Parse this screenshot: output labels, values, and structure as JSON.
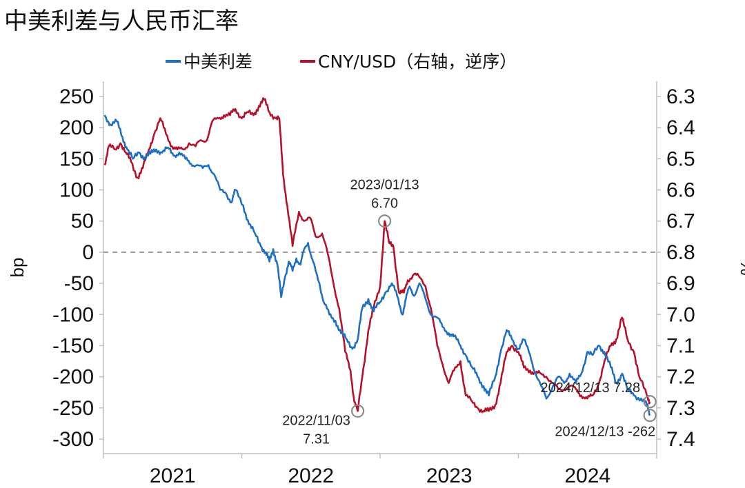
{
  "chart_data": {
    "type": "line",
    "title": "中美利差与人民币汇率",
    "legend": {
      "placement": "top",
      "entries": [
        {
          "name": "中美利差",
          "color": "#1f6fc5"
        },
        {
          "name": "CNY/USD（右轴，逆序）",
          "color": "#b5122b"
        }
      ]
    },
    "x_ticks": [
      "2021",
      "2022",
      "2023",
      "2024"
    ],
    "x_range": [
      "2021-01-01",
      "2024-12-31"
    ],
    "left_axis": {
      "label": "bp",
      "ylim": [
        -300,
        250
      ],
      "ticks": [
        250,
        200,
        150,
        100,
        50,
        0,
        -50,
        -100,
        -150,
        -200,
        -250,
        -300
      ]
    },
    "right_axis": {
      "label": "%",
      "ylim": [
        6.3,
        7.4
      ],
      "inverted": true,
      "ticks": [
        "6.3",
        "6.4",
        "6.5",
        "6.6",
        "6.7",
        "6.8",
        "6.9",
        "7.0",
        "7.1",
        "7.2",
        "7.3",
        "7.4"
      ]
    },
    "zero_line": {
      "y": 0,
      "style": "dashed",
      "color": "#999999"
    },
    "series": [
      {
        "name": "中美利差",
        "axis": "left",
        "color": "#1f6fc5",
        "points": [
          [
            "2021-01-04",
            220
          ],
          [
            "2021-01-20",
            205
          ],
          [
            "2021-02-05",
            210
          ],
          [
            "2021-02-20",
            185
          ],
          [
            "2021-03-05",
            165
          ],
          [
            "2021-03-20",
            150
          ],
          [
            "2021-04-05",
            160
          ],
          [
            "2021-04-20",
            152
          ],
          [
            "2021-05-05",
            158
          ],
          [
            "2021-05-20",
            165
          ],
          [
            "2021-06-05",
            160
          ],
          [
            "2021-06-20",
            168
          ],
          [
            "2021-07-05",
            155
          ],
          [
            "2021-07-20",
            160
          ],
          [
            "2021-08-05",
            150
          ],
          [
            "2021-08-20",
            142
          ],
          [
            "2021-09-05",
            140
          ],
          [
            "2021-09-20",
            135
          ],
          [
            "2021-10-05",
            140
          ],
          [
            "2021-10-20",
            125
          ],
          [
            "2021-11-05",
            100
          ],
          [
            "2021-11-20",
            95
          ],
          [
            "2021-12-05",
            80
          ],
          [
            "2021-12-15",
            100
          ],
          [
            "2022-01-05",
            75
          ],
          [
            "2022-01-20",
            45
          ],
          [
            "2022-02-05",
            30
          ],
          [
            "2022-02-20",
            10
          ],
          [
            "2022-03-05",
            0
          ],
          [
            "2022-03-15",
            -15
          ],
          [
            "2022-03-25",
            5
          ],
          [
            "2022-04-05",
            -20
          ],
          [
            "2022-04-15",
            -72
          ],
          [
            "2022-04-25",
            -40
          ],
          [
            "2022-05-05",
            -15
          ],
          [
            "2022-05-15",
            -30
          ],
          [
            "2022-05-25",
            -10
          ],
          [
            "2022-06-05",
            -20
          ],
          [
            "2022-06-15",
            5
          ],
          [
            "2022-06-25",
            15
          ],
          [
            "2022-07-05",
            -10
          ],
          [
            "2022-07-15",
            -30
          ],
          [
            "2022-07-25",
            -50
          ],
          [
            "2022-08-05",
            -80
          ],
          [
            "2022-08-20",
            -100
          ],
          [
            "2022-09-05",
            -110
          ],
          [
            "2022-09-20",
            -130
          ],
          [
            "2022-10-05",
            -140
          ],
          [
            "2022-10-20",
            -155
          ],
          [
            "2022-11-03",
            -140
          ],
          [
            "2022-11-15",
            -90
          ],
          [
            "2022-12-01",
            -75
          ],
          [
            "2022-12-15",
            -95
          ],
          [
            "2023-01-01",
            -80
          ],
          [
            "2023-01-15",
            -65
          ],
          [
            "2023-02-01",
            -50
          ],
          [
            "2023-02-15",
            -70
          ],
          [
            "2023-03-01",
            -100
          ],
          [
            "2023-03-10",
            -75
          ],
          [
            "2023-03-20",
            -55
          ],
          [
            "2023-04-01",
            -70
          ],
          [
            "2023-04-15",
            -50
          ],
          [
            "2023-05-01",
            -75
          ],
          [
            "2023-05-15",
            -100
          ],
          [
            "2023-06-01",
            -105
          ],
          [
            "2023-06-15",
            -120
          ],
          [
            "2023-07-01",
            -130
          ],
          [
            "2023-07-15",
            -135
          ],
          [
            "2023-08-01",
            -150
          ],
          [
            "2023-08-15",
            -165
          ],
          [
            "2023-09-01",
            -185
          ],
          [
            "2023-09-15",
            -200
          ],
          [
            "2023-10-01",
            -215
          ],
          [
            "2023-10-15",
            -230
          ],
          [
            "2023-11-01",
            -200
          ],
          [
            "2023-11-15",
            -160
          ],
          [
            "2023-12-01",
            -125
          ],
          [
            "2023-12-15",
            -140
          ],
          [
            "2024-01-01",
            -155
          ],
          [
            "2024-01-15",
            -140
          ],
          [
            "2024-02-01",
            -165
          ],
          [
            "2024-02-15",
            -195
          ],
          [
            "2024-03-01",
            -215
          ],
          [
            "2024-03-15",
            -235
          ],
          [
            "2024-04-01",
            -215
          ],
          [
            "2024-04-15",
            -200
          ],
          [
            "2024-05-01",
            -210
          ],
          [
            "2024-05-15",
            -195
          ],
          [
            "2024-06-01",
            -210
          ],
          [
            "2024-06-15",
            -195
          ],
          [
            "2024-07-01",
            -160
          ],
          [
            "2024-07-15",
            -165
          ],
          [
            "2024-08-01",
            -150
          ],
          [
            "2024-08-15",
            -160
          ],
          [
            "2024-09-01",
            -185
          ],
          [
            "2024-09-15",
            -210
          ],
          [
            "2024-10-01",
            -195
          ],
          [
            "2024-10-15",
            -220
          ],
          [
            "2024-11-01",
            -230
          ],
          [
            "2024-11-20",
            -235
          ],
          [
            "2024-12-05",
            -245
          ],
          [
            "2024-12-13",
            -262
          ]
        ]
      },
      {
        "name": "CNY/USD（右轴，逆序）",
        "axis": "right",
        "color": "#b5122b",
        "points": [
          [
            "2021-01-04",
            6.52
          ],
          [
            "2021-01-15",
            6.46
          ],
          [
            "2021-02-01",
            6.47
          ],
          [
            "2021-02-15",
            6.45
          ],
          [
            "2021-03-01",
            6.48
          ],
          [
            "2021-03-15",
            6.51
          ],
          [
            "2021-04-01",
            6.56
          ],
          [
            "2021-04-15",
            6.53
          ],
          [
            "2021-05-01",
            6.47
          ],
          [
            "2021-05-15",
            6.42
          ],
          [
            "2021-05-31",
            6.37
          ],
          [
            "2021-06-15",
            6.42
          ],
          [
            "2021-07-01",
            6.46
          ],
          [
            "2021-07-15",
            6.47
          ],
          [
            "2021-08-01",
            6.47
          ],
          [
            "2021-08-15",
            6.45
          ],
          [
            "2021-09-01",
            6.46
          ],
          [
            "2021-09-15",
            6.44
          ],
          [
            "2021-10-01",
            6.44
          ],
          [
            "2021-10-15",
            6.38
          ],
          [
            "2021-11-01",
            6.37
          ],
          [
            "2021-11-15",
            6.36
          ],
          [
            "2021-12-01",
            6.36
          ],
          [
            "2021-12-15",
            6.34
          ],
          [
            "2022-01-01",
            6.37
          ],
          [
            "2022-01-15",
            6.35
          ],
          [
            "2022-02-01",
            6.36
          ],
          [
            "2022-02-15",
            6.33
          ],
          [
            "2022-03-01",
            6.31
          ],
          [
            "2022-03-15",
            6.35
          ],
          [
            "2022-04-01",
            6.37
          ],
          [
            "2022-04-10",
            6.37
          ],
          [
            "2022-04-20",
            6.55
          ],
          [
            "2022-05-01",
            6.65
          ],
          [
            "2022-05-15",
            6.78
          ],
          [
            "2022-06-01",
            6.67
          ],
          [
            "2022-06-15",
            6.7
          ],
          [
            "2022-07-01",
            6.69
          ],
          [
            "2022-07-15",
            6.75
          ],
          [
            "2022-08-01",
            6.74
          ],
          [
            "2022-08-15",
            6.8
          ],
          [
            "2022-08-31",
            6.9
          ],
          [
            "2022-09-15",
            6.98
          ],
          [
            "2022-10-01",
            7.12
          ],
          [
            "2022-10-15",
            7.18
          ],
          [
            "2022-10-25",
            7.28
          ],
          [
            "2022-11-03",
            7.31
          ],
          [
            "2022-11-15",
            7.2
          ],
          [
            "2022-12-01",
            7.05
          ],
          [
            "2022-12-15",
            6.98
          ],
          [
            "2023-01-01",
            6.91
          ],
          [
            "2023-01-13",
            6.7
          ],
          [
            "2023-01-25",
            6.77
          ],
          [
            "2023-02-05",
            6.78
          ],
          [
            "2023-02-20",
            6.93
          ],
          [
            "2023-03-05",
            6.93
          ],
          [
            "2023-03-15",
            6.89
          ],
          [
            "2023-04-01",
            6.87
          ],
          [
            "2023-04-15",
            6.88
          ],
          [
            "2023-05-01",
            6.91
          ],
          [
            "2023-05-15",
            6.98
          ],
          [
            "2023-06-01",
            7.1
          ],
          [
            "2023-06-15",
            7.16
          ],
          [
            "2023-07-01",
            7.22
          ],
          [
            "2023-07-15",
            7.18
          ],
          [
            "2023-08-01",
            7.15
          ],
          [
            "2023-08-15",
            7.26
          ],
          [
            "2023-09-01",
            7.28
          ],
          [
            "2023-09-15",
            7.3
          ],
          [
            "2023-10-01",
            7.31
          ],
          [
            "2023-10-15",
            7.31
          ],
          [
            "2023-11-01",
            7.29
          ],
          [
            "2023-11-15",
            7.22
          ],
          [
            "2023-12-01",
            7.12
          ],
          [
            "2023-12-15",
            7.1
          ],
          [
            "2024-01-01",
            7.12
          ],
          [
            "2024-01-15",
            7.17
          ],
          [
            "2024-02-01",
            7.18
          ],
          [
            "2024-02-15",
            7.19
          ],
          [
            "2024-03-01",
            7.19
          ],
          [
            "2024-03-15",
            7.2
          ],
          [
            "2024-04-01",
            7.22
          ],
          [
            "2024-04-15",
            7.24
          ],
          [
            "2024-05-01",
            7.24
          ],
          [
            "2024-05-15",
            7.23
          ],
          [
            "2024-06-01",
            7.24
          ],
          [
            "2024-06-15",
            7.26
          ],
          [
            "2024-07-01",
            7.27
          ],
          [
            "2024-07-15",
            7.26
          ],
          [
            "2024-08-01",
            7.22
          ],
          [
            "2024-08-15",
            7.15
          ],
          [
            "2024-09-01",
            7.1
          ],
          [
            "2024-09-15",
            7.08
          ],
          [
            "2024-09-30",
            7.01
          ],
          [
            "2024-10-15",
            7.08
          ],
          [
            "2024-11-01",
            7.12
          ],
          [
            "2024-11-15",
            7.2
          ],
          [
            "2024-12-05",
            7.26
          ],
          [
            "2024-12-13",
            7.28
          ]
        ]
      }
    ],
    "annotations": [
      {
        "date_label": "2023/01/13",
        "value_label": "6.70",
        "x": "2023-01-13",
        "y": 6.7,
        "axis": "right",
        "align": "above"
      },
      {
        "date_label": "2022/11/03",
        "value_label": "7.31",
        "x": "2022-11-03",
        "y": 7.31,
        "axis": "right",
        "align": "below-left"
      },
      {
        "date_label": "2024/12/13",
        "value_label": "7.28",
        "x": "2024-12-13",
        "y": 7.28,
        "axis": "right",
        "align": "left"
      },
      {
        "date_label": "2024/12/13",
        "value_label": "-262",
        "x": "2024-12-13",
        "y": -262,
        "axis": "left",
        "align": "below-left"
      }
    ]
  }
}
